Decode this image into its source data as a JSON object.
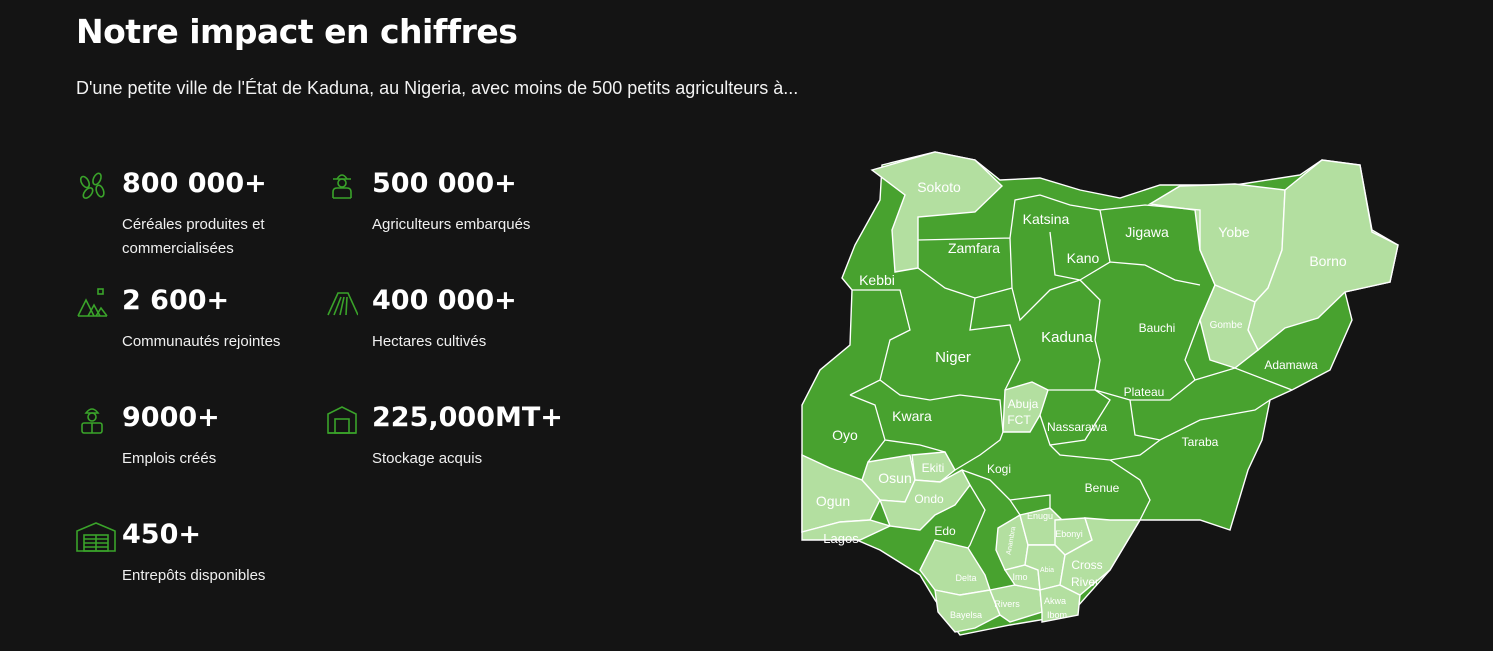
{
  "header": {
    "title": "Notre impact en chiffres",
    "subtitle": "D'une petite ville de l'État de Kaduna, au Nigeria, avec moins de 500 petits agriculteurs à..."
  },
  "colors": {
    "accent": "#3aa32a",
    "background": "#141414",
    "map_dark": "#48a22f",
    "map_light": "#b3dfa0"
  },
  "stats": [
    {
      "value": "800 000+",
      "label": "Céréales produites et commercialisées",
      "icon": "grain-icon"
    },
    {
      "value": "500 000+",
      "label": "Agriculteurs embarqués",
      "icon": "farmer-icon"
    },
    {
      "value": "2 600+",
      "label": "Communautés rejointes",
      "icon": "community-icon"
    },
    {
      "value": "400 000+",
      "label": "Hectares cultivés",
      "icon": "field-icon"
    },
    {
      "value": "9000+",
      "label": "Emplois créés",
      "icon": "worker-icon"
    },
    {
      "value": "225,000MT+",
      "label": "Stockage acquis",
      "icon": "storage-icon"
    },
    {
      "value": "450+",
      "label": "Entrepôts disponibles",
      "icon": "warehouse-icon"
    }
  ],
  "map": {
    "states": {
      "sokoto": "Sokoto",
      "zamfara": "Zamfara",
      "katsina": "Katsina",
      "kano": "Kano",
      "jigawa": "Jigawa",
      "yobe": "Yobe",
      "borno": "Borno",
      "kebbi": "Kebbi",
      "niger": "Niger",
      "kaduna": "Kaduna",
      "bauchi": "Bauchi",
      "gombe": "Gombe",
      "adamawa": "Adamawa",
      "abuja": "Abuja",
      "fct": "FCT",
      "plateau": "Plateau",
      "nassarawa": "Nassarawa",
      "kwara": "Kwara",
      "oyo": "Oyo",
      "taraba": "Taraba",
      "ekiti": "Ekiti",
      "osun": "Osun",
      "kogi": "Kogi",
      "ogun": "Ogun",
      "ondo": "Ondo",
      "benue": "Benue",
      "lagos": "Lagos",
      "edo": "Edo",
      "enugu": "Enugu",
      "ebonyi": "Ebonyi",
      "anambra": "Anambra",
      "cross": "Cross",
      "river": "River",
      "delta": "Delta",
      "imo": "Imo",
      "abia": "Abia",
      "rivers": "Rivers",
      "akwa": "Akwa",
      "ibom": "Ibom",
      "bayelsa": "Bayelsa"
    },
    "highlighted": [
      "Sokoto",
      "Yobe",
      "Borno",
      "Gombe",
      "Abuja FCT",
      "Ekiti",
      "Ogun",
      "Lagos",
      "Ondo",
      "Osun",
      "Enugu",
      "Ebonyi",
      "Anambra",
      "Cross River",
      "Delta",
      "Imo",
      "Abia",
      "Rivers",
      "Akwa Ibom",
      "Bayelsa"
    ]
  }
}
